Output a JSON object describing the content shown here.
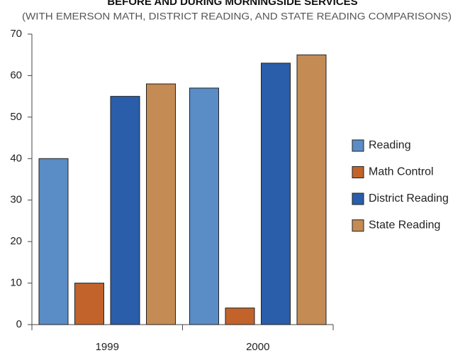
{
  "chart_data": {
    "type": "bar",
    "title": "BEFORE AND DURING MORNINGSIDE SERVICES",
    "subtitle": "(WITH EMERSON MATH, DISTRICT READING, AND STATE READING COMPARISONS)",
    "categories": [
      "1999",
      "2000"
    ],
    "series": [
      {
        "name": "Reading",
        "color": "#5a8dc5",
        "values": [
          40,
          57
        ]
      },
      {
        "name": "Math Control",
        "color": "#c1632b",
        "values": [
          10,
          4
        ]
      },
      {
        "name": "District Reading",
        "color": "#2a5eaa",
        "values": [
          55,
          63
        ]
      },
      {
        "name": "State Reading",
        "color": "#c48b54",
        "values": [
          58,
          65
        ]
      }
    ],
    "ylim": [
      0,
      70
    ],
    "yticks": [
      0,
      10,
      20,
      30,
      40,
      50,
      60,
      70
    ],
    "legend": "right"
  }
}
